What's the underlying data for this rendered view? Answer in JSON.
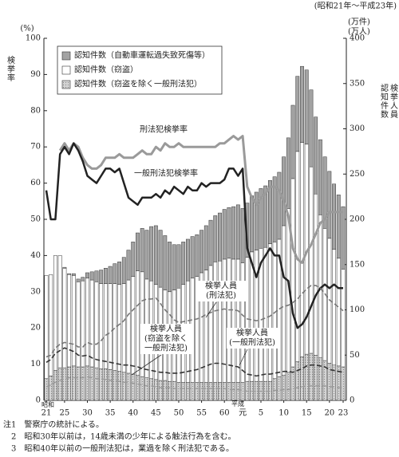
{
  "chart_data": {
    "type": "bar",
    "stacked": true,
    "period": "(昭和21年～平成23年)",
    "ylabel": "(%)",
    "ylabel_vertical": "検挙率",
    "y2label": [
      "(万件)",
      "(万人)"
    ],
    "y2label_vertical": [
      "認知件数",
      "検挙人員"
    ],
    "era_labels": [
      "昭和",
      "平成"
    ],
    "categories": [
      "21",
      null,
      null,
      null,
      "25",
      null,
      null,
      null,
      null,
      "30",
      null,
      null,
      null,
      null,
      "35",
      null,
      null,
      null,
      null,
      "40",
      null,
      null,
      null,
      null,
      "45",
      null,
      null,
      null,
      null,
      "50",
      null,
      null,
      null,
      null,
      "55",
      null,
      null,
      null,
      null,
      "60",
      null,
      null,
      null,
      "元",
      null,
      null,
      null,
      "5",
      null,
      null,
      null,
      null,
      "10",
      null,
      null,
      null,
      null,
      "15",
      null,
      null,
      null,
      null,
      "20",
      null,
      null,
      "23"
    ],
    "ylim": [
      0,
      100
    ],
    "yticks": [
      0,
      10,
      20,
      30,
      40,
      50,
      60,
      70,
      80,
      90,
      100
    ],
    "y2lim": [
      0,
      400
    ],
    "y2ticks": [
      0,
      50,
      100,
      150,
      200,
      250,
      300,
      350,
      400
    ],
    "series": [
      {
        "name": "認知件数（窃盗を除く一般刑法犯）",
        "type": "bar",
        "axis": "y2",
        "color": "#d4d4d4",
        "pattern": "dots",
        "values": [
          24,
          27,
          33,
          36,
          36,
          37,
          38,
          37,
          37,
          38,
          37,
          36,
          35,
          35,
          34,
          33,
          32,
          31,
          30,
          29,
          28,
          26,
          25,
          24,
          23,
          22,
          22,
          21,
          21,
          20,
          20,
          20,
          20,
          20,
          20,
          20,
          20,
          20,
          20,
          20,
          20,
          20,
          20,
          20,
          21,
          21,
          21,
          21,
          21,
          21,
          24,
          26,
          28,
          31,
          37,
          43,
          48,
          51,
          52,
          50,
          47,
          44,
          41,
          39,
          38,
          37
        ]
      },
      {
        "name": "認知件数（窃盗）",
        "type": "bar",
        "axis": "y2",
        "color": "#ffffff",
        "values": [
          114,
          112,
          127,
          124,
          110,
          102,
          100,
          94,
          95,
          97,
          96,
          95,
          94,
          94,
          95,
          96,
          96,
          98,
          103,
          108,
          115,
          116,
          109,
          108,
          105,
          103,
          100,
          99,
          101,
          104,
          108,
          112,
          115,
          117,
          121,
          124,
          129,
          133,
          134,
          136,
          137,
          136,
          136,
          132,
          137,
          143,
          145,
          147,
          148,
          152,
          151,
          152,
          165,
          181,
          208,
          232,
          237,
          232,
          206,
          178,
          158,
          146,
          138,
          128,
          119,
          108
        ]
      },
      {
        "name": "認知件数（自動車運転過失致死傷等）",
        "type": "bar",
        "axis": "y2",
        "color": "#a3a3a3",
        "values": [
          0,
          0,
          0,
          0,
          1,
          1,
          2,
          3,
          4,
          6,
          9,
          12,
          15,
          17,
          19,
          22,
          25,
          29,
          33,
          38,
          42,
          48,
          54,
          60,
          65,
          63,
          60,
          55,
          50,
          48,
          47,
          46,
          46,
          46,
          47,
          49,
          50,
          51,
          53,
          55,
          56,
          58,
          60,
          60,
          60,
          62,
          64,
          66,
          68,
          70,
          72,
          74,
          76,
          78,
          81,
          83,
          84,
          82,
          85,
          85,
          83,
          79,
          74,
          72,
          70,
          69
        ]
      },
      {
        "name": "刑法犯検挙率",
        "type": "line",
        "color": "#9a9a9a",
        "width": 3,
        "values": [
          null,
          null,
          null,
          69,
          71,
          69,
          71,
          70,
          67,
          65,
          64,
          64,
          65,
          67,
          67,
          67,
          68,
          67,
          67,
          67,
          68,
          69,
          68,
          68,
          70,
          69,
          71,
          70,
          70,
          71,
          70,
          70,
          70,
          70,
          70,
          70,
          70,
          70,
          71,
          71,
          72,
          73,
          72,
          73,
          59,
          56,
          54,
          56,
          57,
          59,
          59,
          58,
          55,
          51,
          42,
          39,
          38,
          41,
          43,
          46,
          49,
          50,
          52,
          52,
          52,
          52
        ]
      },
      {
        "name": "一般刑法犯検挙率",
        "type": "line",
        "color": "#222222",
        "width": 2.5,
        "values": [
          58,
          50,
          50,
          68,
          70,
          68,
          71,
          69,
          66,
          62,
          61,
          60,
          62,
          64,
          64,
          63,
          64,
          60,
          56,
          55,
          54,
          56,
          56,
          56,
          57,
          56,
          58,
          57,
          59,
          58,
          57,
          59,
          58,
          58,
          60,
          59,
          60,
          60,
          60,
          61,
          64,
          64,
          62,
          64,
          42,
          38,
          34,
          38,
          40,
          42,
          40,
          40,
          34,
          33,
          24,
          20,
          21,
          23,
          26,
          29,
          31,
          32,
          31,
          32,
          31,
          31
        ]
      },
      {
        "label": [
          "検挙人員",
          "(刑法犯)"
        ],
        "type": "line",
        "axis": "y2",
        "dash": true,
        "color": "#777777",
        "width": 1.6,
        "values": [
          48,
          50,
          58,
          62,
          64,
          63,
          62,
          59,
          59,
          64,
          62,
          62,
          66,
          72,
          75,
          80,
          84,
          88,
          95,
          100,
          105,
          110,
          112,
          112,
          113,
          107,
          100,
          95,
          89,
          86,
          87,
          88,
          89,
          90,
          92,
          95,
          97,
          99,
          100,
          101,
          100,
          100,
          99,
          94,
          90,
          89,
          88,
          89,
          91,
          93,
          97,
          101,
          104,
          105,
          108,
          112,
          118,
          123,
          127,
          127,
          124,
          118,
          111,
          107,
          103,
          99
        ]
      },
      {
        "label": [
          "検挙人員",
          "(一般刑法犯)"
        ],
        "type": "line",
        "axis": "y2",
        "dash": true,
        "color": "#333333",
        "width": 1.6,
        "values": [
          42,
          45,
          52,
          55,
          58,
          56,
          54,
          50,
          49,
          50,
          47,
          45,
          44,
          43,
          42,
          41,
          40,
          39,
          39,
          38,
          37,
          35,
          34,
          33,
          32,
          31,
          31,
          30,
          30,
          30,
          31,
          32,
          33,
          34,
          36,
          38,
          40,
          41,
          41,
          40,
          39,
          38,
          37,
          33,
          29,
          28,
          27,
          28,
          29,
          29,
          30,
          31,
          32,
          32,
          31,
          33,
          35,
          38,
          39,
          39,
          38,
          37,
          34,
          33,
          32,
          31
        ]
      },
      {
        "label": [
          "検挙人員",
          "(窃盗を除く",
          "一般刑法犯)"
        ],
        "type": "line",
        "axis": "y2",
        "dash": true,
        "color": "#9a9a9a",
        "width": 1.4,
        "values": [
          15,
          17,
          20,
          22,
          24,
          25,
          25,
          25,
          25,
          26,
          25,
          24,
          24,
          23,
          22,
          22,
          21,
          20,
          20,
          19,
          18,
          17,
          16,
          16,
          15,
          14,
          14,
          14,
          13,
          13,
          13,
          13,
          13,
          13,
          13,
          13,
          13,
          13,
          13,
          13,
          12,
          12,
          12,
          11,
          10,
          10,
          10,
          10,
          10,
          10,
          11,
          11,
          12,
          12,
          13,
          14,
          15,
          16,
          16,
          16,
          16,
          16,
          15,
          15,
          14,
          14
        ]
      }
    ],
    "notes": [
      "注1　警察庁の統計による。",
      "　2　昭和30年以前は，14歳未満の少年による触法行為を含む。",
      "　3　昭和40年以前の一般刑法犯は，業過を除く刑法犯である。"
    ]
  }
}
